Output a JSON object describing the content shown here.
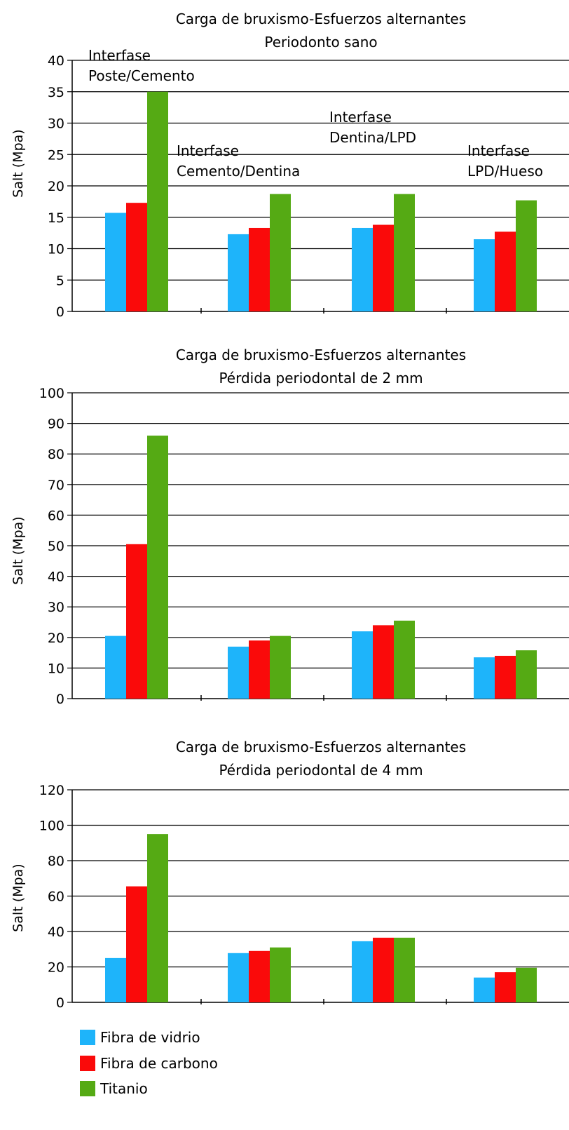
{
  "colors": {
    "Fibra de vidrio": "#1EB4FA",
    "Fibra de carbono": "#FA0A0A",
    "Titanio": "#55AA14"
  },
  "legend": {
    "placement": "bottom-left",
    "entries": [
      "Fibra de vidrio",
      "Fibra de carbono",
      "Titanio"
    ]
  },
  "chart_data": [
    {
      "type": "bar",
      "title": [
        "Carga de bruxismo-Esfuerzos alternantes",
        "Periodonto sano"
      ],
      "ylabel": "Salt (Mpa)",
      "ylim": [
        0,
        40
      ],
      "yticks": [
        0,
        5,
        10,
        15,
        20,
        25,
        30,
        35,
        40
      ],
      "grid": true,
      "annotations": [
        [
          "Interfase",
          "Poste/Cemento"
        ],
        [
          "Interfase",
          "Cemento/Dentina"
        ],
        [
          "Interfase",
          "Dentina/LPD"
        ],
        [
          "Interfase",
          "LPD/Hueso"
        ]
      ],
      "series": [
        {
          "name": "Fibra de vidrio",
          "values": [
            15.7,
            12.3,
            13.3,
            11.5
          ]
        },
        {
          "name": "Fibra de carbono",
          "values": [
            17.3,
            13.3,
            13.8,
            12.7
          ]
        },
        {
          "name": "Titanio",
          "values": [
            35.0,
            18.7,
            18.7,
            17.7
          ]
        }
      ]
    },
    {
      "type": "bar",
      "title": [
        "Carga de bruxismo-Esfuerzos alternantes",
        "Pérdida periodontal de 2 mm"
      ],
      "ylabel": "Salt (Mpa)",
      "ylim": [
        0,
        100
      ],
      "yticks": [
        0,
        10,
        20,
        30,
        40,
        50,
        60,
        70,
        80,
        90,
        100
      ],
      "grid": true,
      "series": [
        {
          "name": "Fibra de vidrio",
          "values": [
            20.5,
            17.0,
            22.0,
            13.5
          ]
        },
        {
          "name": "Fibra de carbono",
          "values": [
            50.5,
            19.0,
            24.0,
            14.0
          ]
        },
        {
          "name": "Titanio",
          "values": [
            86.0,
            20.5,
            25.5,
            15.8
          ]
        }
      ]
    },
    {
      "type": "bar",
      "title": [
        "Carga de bruxismo-Esfuerzos alternantes",
        "Pérdida periodontal de 4 mm"
      ],
      "ylabel": "Salt (Mpa)",
      "ylim": [
        0,
        120
      ],
      "yticks": [
        0,
        20,
        40,
        60,
        80,
        100,
        120
      ],
      "grid": true,
      "series": [
        {
          "name": "Fibra de vidrio",
          "values": [
            25.0,
            27.8,
            34.5,
            14.0
          ]
        },
        {
          "name": "Fibra de carbono",
          "values": [
            65.5,
            29.0,
            36.5,
            17.0
          ]
        },
        {
          "name": "Titanio",
          "values": [
            95.0,
            31.0,
            36.5,
            19.5
          ]
        }
      ]
    }
  ]
}
